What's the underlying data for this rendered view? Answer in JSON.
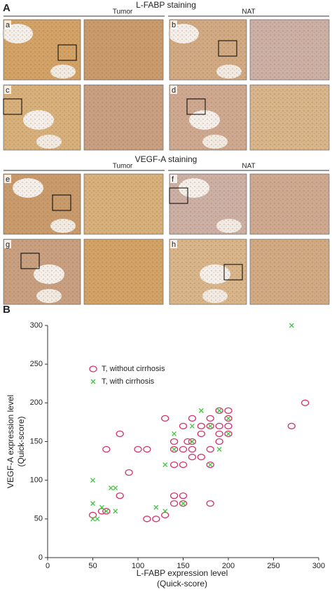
{
  "panel_a": {
    "label": "A",
    "sections": [
      {
        "title": "L-FABP staining",
        "columns": [
          "Tumor",
          "NAT"
        ],
        "panels": [
          "a",
          "b",
          "c",
          "d"
        ]
      },
      {
        "title": "VEGF-A staining",
        "columns": [
          "Tumor",
          "NAT"
        ],
        "panels": [
          "e",
          "f",
          "g",
          "h"
        ]
      }
    ]
  },
  "chart_data": {
    "type": "scatter",
    "label": "B",
    "xlabel": [
      "L-FABP expression level",
      "(Quick-score)"
    ],
    "ylabel": [
      "VEGF-A expression level",
      "(Quick-score)"
    ],
    "xlim": [
      0,
      300
    ],
    "ylim": [
      0,
      300
    ],
    "xticks": [
      0,
      50,
      100,
      150,
      200,
      250,
      300
    ],
    "yticks": [
      0,
      50,
      100,
      150,
      200,
      250,
      300
    ],
    "series": [
      {
        "name": "T, without cirrhosis",
        "color": "#d6336c",
        "marker": "circle",
        "x": [
          50,
          60,
          65,
          65,
          80,
          80,
          90,
          100,
          110,
          110,
          120,
          130,
          130,
          140,
          140,
          140,
          140,
          140,
          150,
          150,
          150,
          150,
          150,
          160,
          160,
          160,
          170,
          170,
          180,
          180,
          180,
          180,
          180,
          190,
          190,
          190,
          190,
          200,
          200,
          200,
          200,
          270,
          285,
          160,
          170,
          155
        ],
        "values": [
          55,
          60,
          60,
          140,
          80,
          160,
          110,
          140,
          140,
          50,
          50,
          55,
          180,
          120,
          80,
          70,
          150,
          140,
          170,
          140,
          120,
          80,
          70,
          150,
          140,
          130,
          170,
          130,
          180,
          170,
          140,
          120,
          70,
          190,
          170,
          160,
          150,
          190,
          180,
          170,
          160,
          170,
          200,
          180,
          160,
          150
        ]
      },
      {
        "name": "T, with cirrhosis",
        "color": "#3cc83c",
        "marker": "x",
        "x": [
          50,
          50,
          50,
          55,
          60,
          65,
          70,
          75,
          75,
          120,
          130,
          130,
          140,
          140,
          150,
          160,
          160,
          170,
          180,
          180,
          190,
          190,
          200,
          200,
          270
        ],
        "values": [
          100,
          70,
          50,
          50,
          65,
          60,
          90,
          90,
          60,
          65,
          120,
          60,
          140,
          160,
          70,
          150,
          170,
          190,
          170,
          120,
          140,
          190,
          180,
          160,
          300
        ]
      }
    ]
  }
}
